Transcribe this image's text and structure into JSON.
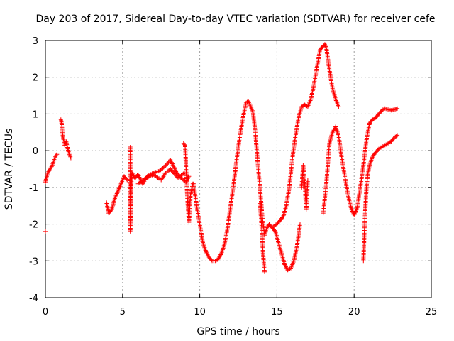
{
  "chart_data": {
    "type": "scatter",
    "title": "Day 203 of 2017, Sidereal Day-to-day VTEC variation (SDTVAR) for receiver cefe",
    "xlabel": "GPS time / hours",
    "ylabel": "SDTVAR / TECUs",
    "xlim": [
      0,
      25
    ],
    "ylim": [
      -4,
      3
    ],
    "xticks": [
      0,
      5,
      10,
      15,
      20,
      25
    ],
    "yticks": [
      -4,
      -3,
      -2,
      -1,
      0,
      1,
      2,
      3
    ],
    "xtick_labels": [
      "0",
      "5",
      "10",
      "15",
      "20",
      "25"
    ],
    "ytick_labels": [
      "-4",
      "-3",
      "-2",
      "-1",
      "0",
      "1",
      "2",
      "3"
    ],
    "grid": true,
    "marker": "+",
    "color": "#ff0000",
    "series": [
      {
        "name": "seg0",
        "x": [
          0.0
        ],
        "y": [
          -2.2
        ]
      },
      {
        "name": "seg1",
        "x": [
          0.0,
          0.15,
          0.3,
          0.45,
          0.6,
          0.75
        ],
        "y": [
          -0.85,
          -0.6,
          -0.5,
          -0.4,
          -0.2,
          -0.1
        ]
      },
      {
        "name": "seg2",
        "x": [
          1.0,
          1.05,
          1.1,
          1.15,
          1.25,
          1.35,
          1.45,
          1.55,
          1.65
        ],
        "y": [
          0.85,
          0.75,
          0.5,
          0.35,
          0.15,
          0.25,
          0.05,
          -0.1,
          -0.2
        ]
      },
      {
        "name": "seg3",
        "x": [
          3.95,
          4.1,
          4.3,
          4.5,
          4.7,
          4.9,
          5.1,
          5.3
        ],
        "y": [
          -1.4,
          -1.7,
          -1.6,
          -1.3,
          -1.1,
          -0.9,
          -0.7,
          -0.8
        ]
      },
      {
        "name": "seg4",
        "x": [
          5.5,
          5.5,
          5.55,
          5.6,
          5.8,
          6.0,
          6.3,
          6.6,
          7.0,
          7.4,
          7.8,
          8.1,
          8.5,
          8.8,
          9.1,
          9.3
        ],
        "y": [
          0.1,
          -2.2,
          -1.0,
          -0.6,
          -0.75,
          -0.65,
          -0.9,
          -0.7,
          -0.6,
          -0.55,
          -0.4,
          -0.25,
          -0.6,
          -0.75,
          -0.85,
          -0.7
        ]
      },
      {
        "name": "seg5",
        "x": [
          6.0,
          6.5,
          7.0,
          7.5,
          7.8,
          8.1,
          8.6,
          9.0
        ],
        "y": [
          -0.9,
          -0.75,
          -0.65,
          -0.8,
          -0.6,
          -0.5,
          -0.75,
          -0.6
        ]
      },
      {
        "name": "seg6",
        "x": [
          8.95,
          9.05,
          9.2,
          9.3,
          9.4,
          9.55
        ],
        "y": [
          0.2,
          0.15,
          -1.3,
          -1.95,
          -1.2,
          -0.9
        ]
      },
      {
        "name": "seg7",
        "x": [
          9.6,
          9.8,
          10.0,
          10.2,
          10.4,
          10.6,
          10.8,
          11.0,
          11.2,
          11.4,
          11.6,
          11.8,
          12.0,
          12.2,
          12.4,
          12.6,
          12.8,
          13.0,
          13.15,
          13.3,
          13.45,
          13.6,
          13.75,
          13.9,
          14.05,
          14.2,
          14.35,
          14.5
        ],
        "y": [
          -0.9,
          -1.5,
          -2.0,
          -2.5,
          -2.75,
          -2.9,
          -3.0,
          -3.0,
          -2.95,
          -2.8,
          -2.55,
          -2.1,
          -1.5,
          -0.9,
          -0.2,
          0.4,
          0.9,
          1.3,
          1.35,
          1.2,
          1.05,
          0.5,
          -0.3,
          -1.0,
          -1.8,
          -2.3,
          -2.1,
          -2.0
        ]
      },
      {
        "name": "seg8",
        "x": [
          13.9,
          14.0,
          14.1,
          14.2
        ],
        "y": [
          -1.4,
          -2.0,
          -2.8,
          -3.3
        ]
      },
      {
        "name": "seg9",
        "x": [
          14.5,
          14.7,
          14.9,
          15.1,
          15.3,
          15.5,
          15.7,
          15.9,
          16.1,
          16.3,
          16.5
        ],
        "y": [
          -2.0,
          -2.1,
          -2.2,
          -2.5,
          -2.8,
          -3.1,
          -3.25,
          -3.2,
          -3.0,
          -2.6,
          -2.0
        ]
      },
      {
        "name": "seg10",
        "x": [
          14.8,
          15.0,
          15.2,
          15.4,
          15.6,
          15.8,
          16.0,
          16.2,
          16.4,
          16.6,
          16.8,
          17.0,
          17.2,
          17.4,
          17.6,
          17.8,
          18.0,
          18.1,
          18.2,
          18.4,
          18.6,
          18.8,
          19.0
        ],
        "y": [
          -2.05,
          -2.0,
          -1.9,
          -1.8,
          -1.5,
          -1.0,
          -0.2,
          0.4,
          0.9,
          1.2,
          1.25,
          1.2,
          1.4,
          1.8,
          2.3,
          2.75,
          2.85,
          2.9,
          2.8,
          2.2,
          1.7,
          1.4,
          1.2
        ]
      },
      {
        "name": "seg11",
        "x": [
          16.6,
          16.7,
          16.8,
          16.9,
          17.0
        ],
        "y": [
          -1.0,
          -0.4,
          -0.9,
          -1.6,
          -0.8
        ]
      },
      {
        "name": "seg12",
        "x": [
          18.0,
          18.2,
          18.4,
          18.6,
          18.8,
          19.0,
          19.2,
          19.4,
          19.6,
          19.8,
          20.0,
          20.2,
          20.4
        ],
        "y": [
          -1.7,
          -0.9,
          0.2,
          0.5,
          0.65,
          0.4,
          -0.2,
          -0.7,
          -1.2,
          -1.55,
          -1.75,
          -1.55,
          -1.0
        ]
      },
      {
        "name": "seg13",
        "x": [
          20.4,
          20.6,
          20.8,
          21.0,
          21.2,
          21.4,
          21.6,
          21.8,
          22.0,
          22.2,
          22.4,
          22.6,
          22.8
        ],
        "y": [
          -1.0,
          -0.4,
          0.3,
          0.75,
          0.85,
          0.9,
          1.0,
          1.1,
          1.15,
          1.12,
          1.1,
          1.12,
          1.15
        ]
      },
      {
        "name": "seg14",
        "x": [
          20.6,
          20.7,
          20.8,
          20.9,
          21.0,
          21.2,
          21.4,
          21.6,
          21.8,
          22.0,
          22.2,
          22.4,
          22.6,
          22.8
        ],
        "y": [
          -3.0,
          -1.8,
          -1.0,
          -0.6,
          -0.4,
          -0.15,
          -0.05,
          0.05,
          0.1,
          0.15,
          0.2,
          0.25,
          0.35,
          0.42
        ]
      }
    ]
  }
}
